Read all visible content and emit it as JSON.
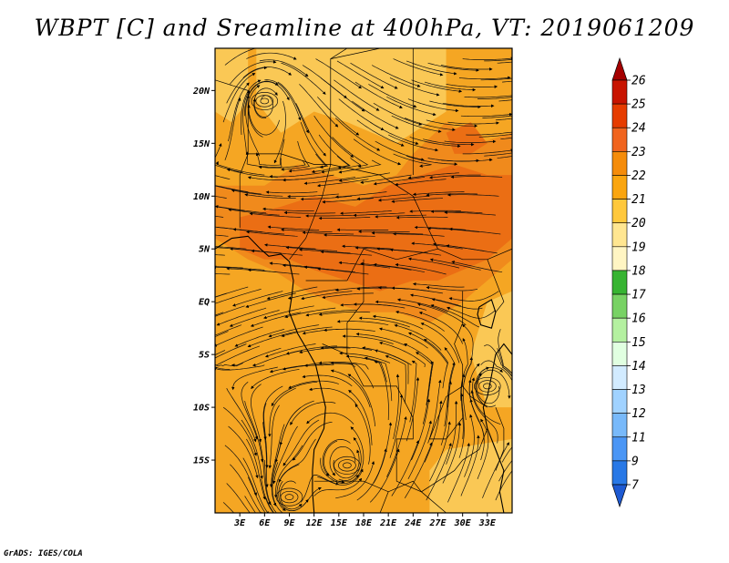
{
  "title": "WBPT [C] and Sreamline at 400hPa, VT: 2019061209",
  "credit": "GrADS: IGES/COLA",
  "map": {
    "variable": "Wet-bulb potential temperature",
    "units": "C",
    "level": "400hPa",
    "valid_time": "2019061209",
    "lon_range": [
      0,
      36
    ],
    "lat_range": [
      -20,
      24
    ],
    "lat_ticks": [
      {
        "value": 20,
        "label": "20N"
      },
      {
        "value": 15,
        "label": "15N"
      },
      {
        "value": 10,
        "label": "10N"
      },
      {
        "value": 5,
        "label": "5N"
      },
      {
        "value": 0,
        "label": "EQ"
      },
      {
        "value": -5,
        "label": "5S"
      },
      {
        "value": -10,
        "label": "10S"
      },
      {
        "value": -15,
        "label": "15S"
      }
    ],
    "lon_ticks": [
      {
        "value": 3,
        "label": "3E"
      },
      {
        "value": 6,
        "label": "6E"
      },
      {
        "value": 9,
        "label": "9E"
      },
      {
        "value": 12,
        "label": "12E"
      },
      {
        "value": 15,
        "label": "15E"
      },
      {
        "value": 18,
        "label": "18E"
      },
      {
        "value": 21,
        "label": "21E"
      },
      {
        "value": 24,
        "label": "24E"
      },
      {
        "value": 27,
        "label": "27E"
      },
      {
        "value": 30,
        "label": "30E"
      },
      {
        "value": 33,
        "label": "33E"
      }
    ]
  },
  "colorbar": {
    "labels": [
      "26",
      "25",
      "24",
      "23",
      "22",
      "21",
      "20",
      "19",
      "18",
      "17",
      "16",
      "15",
      "14",
      "13",
      "12",
      "11",
      "9",
      "7"
    ],
    "colors": [
      "#a50000",
      "#c81400",
      "#e63c00",
      "#f0641e",
      "#f58c0a",
      "#faa50f",
      "#ffc83c",
      "#ffe691",
      "#fff5c3",
      "#37b432",
      "#78d264",
      "#b4f0a0",
      "#e1ffe1",
      "#d2ebff",
      "#a0d2ff",
      "#78b9fa",
      "#4b96f5",
      "#2878e6",
      "#1e5ad2"
    ]
  },
  "wbpt_field": {
    "base": "#f5a623",
    "regions": [
      {
        "value": 20,
        "color": "#fac855",
        "points": [
          [
            5,
            24
          ],
          [
            28,
            24
          ],
          [
            28,
            18
          ],
          [
            22,
            15
          ],
          [
            16,
            17
          ],
          [
            12,
            18
          ],
          [
            8,
            16
          ],
          [
            5,
            19
          ]
        ]
      },
      {
        "value": 20,
        "color": "#fac855",
        "points": [
          [
            0,
            24
          ],
          [
            4,
            24
          ],
          [
            4,
            19
          ],
          [
            2,
            17
          ],
          [
            0,
            18
          ]
        ]
      },
      {
        "value": 20,
        "color": "#fac855",
        "points": [
          [
            28,
            -14
          ],
          [
            36,
            -13
          ],
          [
            36,
            -20
          ],
          [
            26,
            -20
          ],
          [
            26,
            -16
          ]
        ]
      },
      {
        "value": 20,
        "color": "#fac855",
        "points": [
          [
            33,
            0
          ],
          [
            36,
            1
          ],
          [
            36,
            -10
          ],
          [
            33,
            -10
          ],
          [
            31,
            -5
          ]
        ]
      },
      {
        "value": 22,
        "color": "#f08a1c",
        "points": [
          [
            0,
            11
          ],
          [
            6,
            11
          ],
          [
            10,
            13
          ],
          [
            14,
            12
          ],
          [
            18,
            11
          ],
          [
            22,
            12
          ],
          [
            24,
            14
          ],
          [
            28,
            17
          ],
          [
            32,
            15
          ],
          [
            36,
            16
          ],
          [
            36,
            4
          ],
          [
            33,
            2
          ],
          [
            30,
            0
          ],
          [
            26,
            -2
          ],
          [
            22,
            -1
          ],
          [
            18,
            -1
          ],
          [
            14,
            0
          ],
          [
            11,
            1
          ],
          [
            7,
            3
          ],
          [
            4,
            4
          ],
          [
            0,
            6
          ]
        ]
      },
      {
        "value": 23,
        "color": "#eb6e14",
        "points": [
          [
            3,
            8
          ],
          [
            8,
            9
          ],
          [
            12,
            10
          ],
          [
            17,
            9
          ],
          [
            21,
            11
          ],
          [
            25,
            12
          ],
          [
            29,
            13
          ],
          [
            33,
            12
          ],
          [
            36,
            12
          ],
          [
            36,
            6
          ],
          [
            33,
            4
          ],
          [
            30,
            3
          ],
          [
            27,
            2
          ],
          [
            24,
            2
          ],
          [
            20,
            1
          ],
          [
            16,
            2
          ],
          [
            12,
            3
          ],
          [
            9,
            4
          ],
          [
            6,
            4
          ],
          [
            3,
            5
          ]
        ]
      },
      {
        "value": 23,
        "color": "#eb6e14",
        "points": [
          [
            28,
            16
          ],
          [
            31,
            17
          ],
          [
            33,
            15
          ],
          [
            31,
            14
          ],
          [
            29,
            14
          ]
        ]
      }
    ]
  },
  "coastline": {
    "west_africa": [
      [
        0,
        5
      ],
      [
        2,
        6
      ],
      [
        4,
        6.2
      ],
      [
        5.5,
        5
      ],
      [
        6.5,
        4.3
      ],
      [
        8,
        4.5
      ],
      [
        9,
        3.8
      ],
      [
        9.5,
        2
      ],
      [
        9.3,
        0.5
      ],
      [
        9,
        -1
      ],
      [
        10,
        -3
      ],
      [
        11.5,
        -5
      ],
      [
        12.2,
        -6
      ],
      [
        12.8,
        -8
      ],
      [
        13.4,
        -10
      ],
      [
        13.2,
        -12
      ],
      [
        12,
        -14
      ],
      [
        11.8,
        -16
      ],
      [
        11.8,
        -18
      ],
      [
        12,
        -20
      ]
    ],
    "east_africa": [
      [
        36,
        -5
      ],
      [
        35,
        -4
      ],
      [
        34,
        -5
      ],
      [
        33.5,
        -7
      ],
      [
        33,
        -9
      ],
      [
        32.5,
        -10
      ],
      [
        33,
        -12
      ],
      [
        34,
        -14
      ],
      [
        35,
        -16
      ],
      [
        34.5,
        -18
      ],
      [
        35,
        -20
      ]
    ],
    "lake_victoria": [
      [
        32,
        -0.5
      ],
      [
        33.5,
        0.2
      ],
      [
        34,
        -1
      ],
      [
        33.5,
        -2.5
      ],
      [
        32.2,
        -2.2
      ],
      [
        31.8,
        -1.2
      ],
      [
        32,
        -0.5
      ]
    ]
  },
  "borders": [
    [
      [
        9,
        4
      ],
      [
        11,
        6
      ],
      [
        13,
        10
      ],
      [
        14,
        13
      ],
      [
        14,
        17
      ],
      [
        14,
        23
      ],
      [
        16,
        24
      ]
    ],
    [
      [
        14,
        13
      ],
      [
        20,
        12
      ],
      [
        24,
        10
      ],
      [
        27,
        5
      ],
      [
        30,
        4
      ],
      [
        33,
        4
      ],
      [
        36,
        5
      ]
    ],
    [
      [
        24,
        24
      ],
      [
        24,
        20
      ],
      [
        24,
        12
      ]
    ],
    [
      [
        14,
        23
      ],
      [
        20,
        24
      ]
    ],
    [
      [
        4,
        14
      ],
      [
        4,
        20
      ],
      [
        0,
        21
      ]
    ],
    [
      [
        3,
        7
      ],
      [
        3,
        12
      ],
      [
        4,
        14
      ],
      [
        8,
        14
      ],
      [
        12,
        13
      ],
      [
        14,
        13
      ]
    ],
    [
      [
        16,
        2
      ],
      [
        18,
        5
      ],
      [
        22,
        4
      ],
      [
        27,
        5
      ]
    ],
    [
      [
        11,
        2
      ],
      [
        16,
        2
      ]
    ],
    [
      [
        13,
        -4
      ],
      [
        16,
        -5
      ],
      [
        18,
        -8
      ],
      [
        22,
        -8
      ],
      [
        24,
        -11
      ],
      [
        24,
        -13
      ],
      [
        22,
        -13
      ],
      [
        22,
        -17
      ]
    ],
    [
      [
        16,
        -5
      ],
      [
        16,
        -2
      ],
      [
        18,
        0
      ],
      [
        18,
        4
      ]
    ],
    [
      [
        22,
        -17
      ],
      [
        25,
        -18
      ],
      [
        27,
        -17
      ],
      [
        29,
        -16
      ],
      [
        30,
        -15
      ],
      [
        32,
        -14
      ],
      [
        33,
        -12
      ]
    ],
    [
      [
        12,
        -17
      ],
      [
        18,
        -17
      ],
      [
        21,
        -18
      ],
      [
        24,
        -17
      ],
      [
        25,
        -18
      ]
    ],
    [
      [
        20,
        -20
      ],
      [
        21,
        -18
      ]
    ],
    [
      [
        25,
        -18
      ],
      [
        28,
        -20
      ]
    ],
    [
      [
        30,
        1
      ],
      [
        30,
        -2
      ],
      [
        29,
        -4
      ],
      [
        30,
        -6
      ],
      [
        30,
        -8
      ],
      [
        31,
        -9
      ],
      [
        33,
        -10
      ]
    ],
    [
      [
        30,
        -8
      ],
      [
        28,
        -9
      ],
      [
        27,
        -11
      ],
      [
        26,
        -13
      ],
      [
        28,
        -13
      ],
      [
        30,
        -11
      ]
    ],
    [
      [
        34,
        -10
      ],
      [
        35,
        -12
      ],
      [
        35,
        -14
      ],
      [
        34,
        -16
      ]
    ],
    [
      [
        33,
        4
      ],
      [
        34,
        2
      ],
      [
        35,
        0
      ],
      [
        34,
        -1
      ]
    ]
  ],
  "streamline_centers": [
    {
      "lon": 9,
      "lat": -18.5,
      "direction": "ccw",
      "label": "anticyclone-southwest"
    },
    {
      "lon": 16,
      "lat": -15.5,
      "direction": "ccw",
      "label": "anticyclone-south"
    },
    {
      "lon": 33,
      "lat": -8,
      "direction": "cw",
      "label": "eddy-east"
    },
    {
      "lon": 6,
      "lat": 19,
      "direction": "cw",
      "label": "eddy-north"
    }
  ]
}
